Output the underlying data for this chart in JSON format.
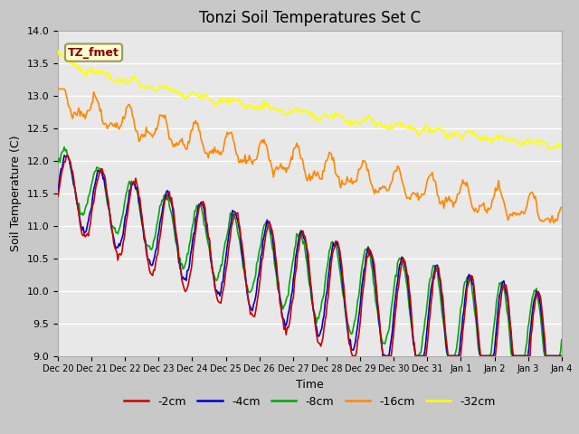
{
  "title": "Tonzi Soil Temperatures Set C",
  "xlabel": "Time",
  "ylabel": "Soil Temperature (C)",
  "ylim": [
    9.0,
    14.0
  ],
  "yticks": [
    9.0,
    9.5,
    10.0,
    10.5,
    11.0,
    11.5,
    12.0,
    12.5,
    13.0,
    13.5,
    14.0
  ],
  "x_labels": [
    "Dec 20",
    "Dec 21",
    "Dec 22",
    "Dec 23",
    "Dec 24",
    "Dec 25",
    "Dec 26",
    "Dec 27",
    "Dec 28",
    "Dec 29",
    "Dec 30",
    "Dec 31",
    "Jan 1",
    "Jan 2",
    "Jan 3",
    "Jan 4"
  ],
  "n_points": 480,
  "colors": {
    "-2cm": "#cc0000",
    "-4cm": "#0000cc",
    "-8cm": "#00aa00",
    "-16cm": "#ff8800",
    "-32cm": "#ffff00"
  },
  "legend_labels": [
    "-2cm",
    "-4cm",
    "-8cm",
    "-16cm",
    "-32cm"
  ],
  "annotation_text": "TZ_fmet",
  "annotation_box_color": "#ffffcc",
  "annotation_text_color": "#880000",
  "fig_bg_color": "#c8c8c8",
  "plot_bg_color": "#e8e8e8",
  "grid_color": "#ffffff",
  "title_fontsize": 12,
  "label_fontsize": 9,
  "tick_fontsize": 8
}
